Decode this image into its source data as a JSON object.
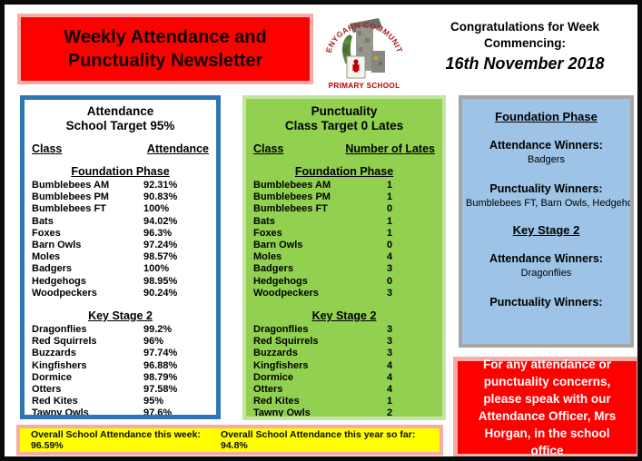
{
  "header": {
    "title_line1": "Weekly Attendance and",
    "title_line2": "Punctuality Newsletter",
    "congrats_label": "Congratulations for Week Commencing:",
    "congrats_date": "16th November 2018",
    "logo_arc_text": "PENYGARN COMMUNITY",
    "logo_bottom_text": "PRIMARY SCHOOL"
  },
  "attendance_panel": {
    "title_line1": "Attendance",
    "title_line2": "School Target 95%",
    "col_class": "Class",
    "col_value": "Attendance",
    "foundation_header": "Foundation Phase",
    "foundation_rows": [
      {
        "name": "Bumblebees AM",
        "value": "92.31%"
      },
      {
        "name": "Bumblebees PM",
        "value": "90.83%"
      },
      {
        "name": "Bumblebees FT",
        "value": "100%"
      },
      {
        "name": "Bats",
        "value": "94.02%"
      },
      {
        "name": "Foxes",
        "value": "96.3%"
      },
      {
        "name": "Barn Owls",
        "value": "97.24%"
      },
      {
        "name": "Moles",
        "value": "98.57%"
      },
      {
        "name": "Badgers",
        "value": "100%"
      },
      {
        "name": "Hedgehogs",
        "value": "98.95%"
      },
      {
        "name": "Woodpeckers",
        "value": "90.24%"
      }
    ],
    "ks2_header": "Key Stage 2",
    "ks2_rows": [
      {
        "name": "Dragonflies",
        "value": "99.2%"
      },
      {
        "name": "Red Squirrels",
        "value": "96%"
      },
      {
        "name": "Buzzards",
        "value": "97.74%"
      },
      {
        "name": "Kingfishers",
        "value": "96.88%"
      },
      {
        "name": "Dormice",
        "value": "98.79%"
      },
      {
        "name": "Otters",
        "value": "97.58%"
      },
      {
        "name": "Red Kites",
        "value": "95%"
      },
      {
        "name": "Tawny Owls",
        "value": "97.6%"
      }
    ]
  },
  "punctuality_panel": {
    "title_line1": "Punctuality",
    "title_line2": "Class Target 0 Lates",
    "col_class": "Class",
    "col_value": "Number of Lates",
    "foundation_header": "Foundation Phase",
    "foundation_rows": [
      {
        "name": "Bumblebees AM",
        "value": "1"
      },
      {
        "name": "Bumblebees PM",
        "value": "1"
      },
      {
        "name": "Bumblebees FT",
        "value": "0"
      },
      {
        "name": "Bats",
        "value": "1"
      },
      {
        "name": "Foxes",
        "value": "1"
      },
      {
        "name": "Barn Owls",
        "value": "0"
      },
      {
        "name": "Moles",
        "value": "4"
      },
      {
        "name": "Badgers",
        "value": "3"
      },
      {
        "name": "Hedgehogs",
        "value": "0"
      },
      {
        "name": "Woodpeckers",
        "value": "3"
      }
    ],
    "ks2_header": "Key Stage 2",
    "ks2_rows": [
      {
        "name": "Dragonflies",
        "value": "3"
      },
      {
        "name": "Red Squirrels",
        "value": "3"
      },
      {
        "name": "Buzzards",
        "value": "3"
      },
      {
        "name": "Kingfishers",
        "value": "4"
      },
      {
        "name": "Dormice",
        "value": "4"
      },
      {
        "name": "Otters",
        "value": "4"
      },
      {
        "name": "Red Kites",
        "value": "1"
      },
      {
        "name": "Tawny Owls",
        "value": "2"
      }
    ]
  },
  "winners_panel": {
    "foundation_header": "Foundation Phase",
    "attendance_winners_label_1": "Attendance Winners:",
    "foundation_attendance_winner": "Badgers",
    "punctuality_winners_label_1": "Punctuality Winners:",
    "foundation_punctuality_winners": "Bumblebees FT, Barn Owls, Hedgehogs",
    "ks2_header": "Key Stage 2",
    "attendance_winners_label_2": "Attendance Winners:",
    "ks2_attendance_winner": "Dragonflies",
    "punctuality_winners_label_2": "Punctuality Winners:",
    "ks2_punctuality_winners": ""
  },
  "concerns_box": {
    "text": "For any attendance or punctuality concerns, please speak with our Attendance Officer, Mrs Horgan, in the school office"
  },
  "overall_bar": {
    "week_text": "Overall School Attendance this week: 96.59%",
    "year_text": "Overall School Attendance this year so far: 94.8%"
  },
  "colors": {
    "red": "#fe0000",
    "pink_border": "#f7aca7",
    "attendance_border_blue": "#2e75b6",
    "punctuality_green": "#92d050",
    "punctuality_border_green": "#c3e5a2",
    "winners_blue": "#9dc3e6",
    "winners_border_gray": "#a6a6a6",
    "overall_yellow": "#ffff00",
    "page_border_black": "#0a0a0a"
  }
}
